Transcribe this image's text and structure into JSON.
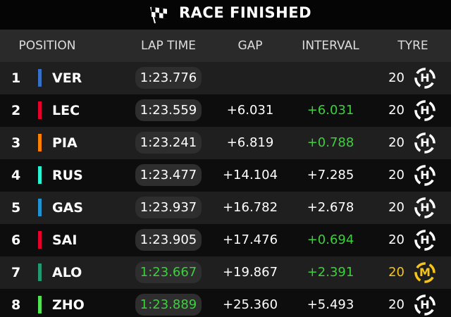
{
  "header": {
    "title": "RACE FINISHED"
  },
  "table": {
    "columns": [
      "POSITION",
      "LAP TIME",
      "GAP",
      "INTERVAL",
      "TYRE"
    ],
    "rows": [
      {
        "position": "1",
        "driver": "VER",
        "team_color": "#3671c6",
        "lap_time": "1:23.776",
        "lap_time_color": "#ffffff",
        "tyre_age": "20",
        "compound": "H",
        "compound_color": "#ffffff"
      },
      {
        "position": "2",
        "driver": "LEC",
        "team_color": "#e8002d",
        "lap_time": "1:23.559",
        "lap_time_color": "#ffffff",
        "gap": "+6.031",
        "interval": "+6.031",
        "interval_color": "#3ecf3e",
        "tyre_age": "20",
        "compound": "H",
        "compound_color": "#ffffff"
      },
      {
        "position": "3",
        "driver": "PIA",
        "team_color": "#ff8000",
        "lap_time": "1:23.241",
        "lap_time_color": "#ffffff",
        "gap": "+6.819",
        "interval": "+0.788",
        "interval_color": "#3ecf3e",
        "tyre_age": "20",
        "compound": "H",
        "compound_color": "#ffffff"
      },
      {
        "position": "4",
        "driver": "RUS",
        "team_color": "#27f4d2",
        "lap_time": "1:23.477",
        "lap_time_color": "#ffffff",
        "gap": "+14.104",
        "interval": "+7.285",
        "interval_color": "#ffffff",
        "tyre_age": "20",
        "compound": "H",
        "compound_color": "#ffffff"
      },
      {
        "position": "5",
        "driver": "GAS",
        "team_color": "#2293d1",
        "lap_time": "1:23.937",
        "lap_time_color": "#ffffff",
        "gap": "+16.782",
        "interval": "+2.678",
        "interval_color": "#ffffff",
        "tyre_age": "20",
        "compound": "H",
        "compound_color": "#ffffff"
      },
      {
        "position": "6",
        "driver": "SAI",
        "team_color": "#e8002d",
        "lap_time": "1:23.905",
        "lap_time_color": "#ffffff",
        "gap": "+17.476",
        "interval": "+0.694",
        "interval_color": "#3ecf3e",
        "tyre_age": "20",
        "compound": "H",
        "compound_color": "#ffffff"
      },
      {
        "position": "7",
        "driver": "ALO",
        "team_color": "#229971",
        "lap_time": "1:23.667",
        "lap_time_color": "#3ecf3e",
        "gap": "+19.867",
        "interval": "+2.391",
        "interval_color": "#3ecf3e",
        "tyre_age": "20",
        "compound": "M",
        "compound_color": "#f5c518"
      },
      {
        "position": "8",
        "driver": "ZHO",
        "team_color": "#52e252",
        "lap_time": "1:23.889",
        "lap_time_color": "#3ecf3e",
        "gap": "+25.360",
        "interval": "+5.493",
        "interval_color": "#ffffff",
        "tyre_age": "20",
        "compound": "H",
        "compound_color": "#ffffff"
      }
    ]
  }
}
